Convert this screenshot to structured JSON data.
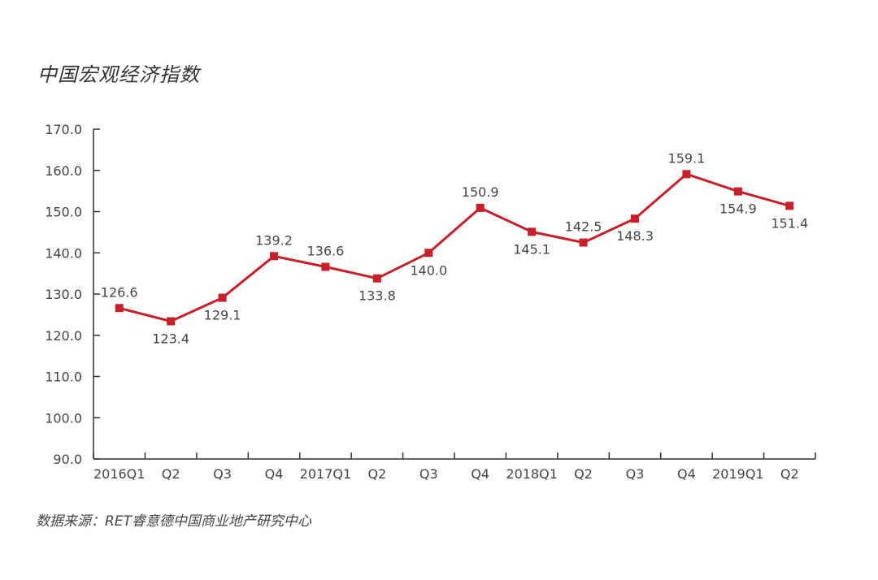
{
  "title": "中国宏观经济指数",
  "source": "数据来源：RET睿意德中国商业地产研究中心",
  "colors": {
    "line": "#c8202a",
    "axis": "#333333",
    "text": "#444444"
  },
  "chart_data": {
    "type": "line",
    "title": "中国宏观经济指数",
    "categories": [
      "2016Q1",
      "Q2",
      "Q3",
      "Q4",
      "2017Q1",
      "Q2",
      "Q3",
      "Q4",
      "2018Q1",
      "Q2",
      "Q3",
      "Q4",
      "2019Q1",
      "Q2"
    ],
    "values": [
      126.6,
      123.4,
      129.1,
      139.2,
      136.6,
      133.8,
      140.0,
      150.9,
      145.1,
      142.5,
      148.3,
      159.1,
      154.9,
      151.4
    ],
    "value_labels": [
      "126.6",
      "123.4",
      "129.1",
      "139.2",
      "136.6",
      "133.8",
      "140.0",
      "150.9",
      "145.1",
      "142.5",
      "148.3",
      "159.1",
      "154.9",
      "151.4"
    ],
    "label_position": [
      "above",
      "below",
      "below",
      "above",
      "above",
      "below",
      "below",
      "above",
      "below",
      "above",
      "below",
      "above",
      "below",
      "below"
    ],
    "ylim": [
      90.0,
      170.0
    ],
    "yticks": [
      90.0,
      100.0,
      110.0,
      120.0,
      130.0,
      140.0,
      150.0,
      160.0,
      170.0
    ],
    "ytick_labels": [
      "90.0",
      "100.0",
      "110.0",
      "120.0",
      "130.0",
      "140.0",
      "150.0",
      "160.0",
      "170.0"
    ],
    "xlabel": "",
    "ylabel": "",
    "grid": false,
    "legend": "none",
    "marker": "square"
  }
}
